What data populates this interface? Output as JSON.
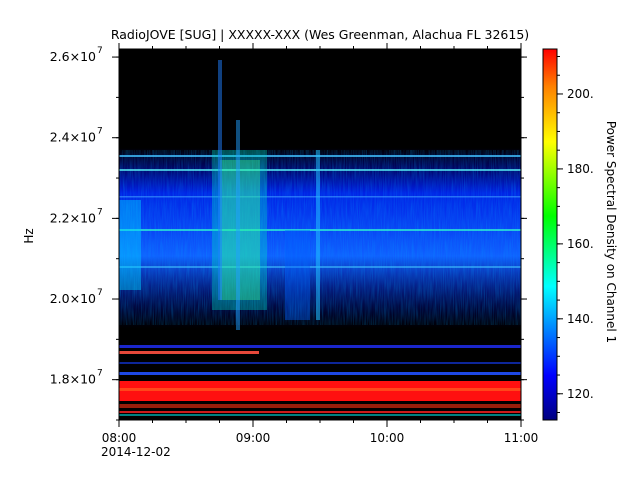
{
  "chart_data": {
    "type": "heatmap",
    "title": "RadioJOVE [SUG] | XXXXX-XXX (Wes Greenman, Alachua FL 32615)",
    "ylabel": "Hz",
    "colorbar_label": "Power Spectral Density on Channel 1",
    "x_ticks": [
      "08:00",
      "09:00",
      "10:00",
      "11:00"
    ],
    "x_date_label": "2014-12-02",
    "xlim": [
      "08:00",
      "11:00"
    ],
    "y_ticks": [
      {
        "value": 18000000,
        "mantissa": "1.8",
        "base": "×10",
        "exp": "7"
      },
      {
        "value": 20000000,
        "mantissa": "2.0",
        "base": "×10",
        "exp": "7"
      },
      {
        "value": 22000000,
        "mantissa": "2.2",
        "base": "×10",
        "exp": "7"
      },
      {
        "value": 24000000,
        "mantissa": "2.4",
        "base": "×10",
        "exp": "7"
      },
      {
        "value": 26000000,
        "mantissa": "2.6",
        "base": "×10",
        "exp": "7"
      }
    ],
    "ylim": [
      17000000,
      26200000
    ],
    "colorbar_ticks": [
      "120.",
      "140.",
      "160.",
      "180.",
      "200."
    ],
    "colorbar_tick_values": [
      120,
      140,
      160,
      180,
      200
    ],
    "zlim": [
      113,
      212
    ],
    "colormap": [
      "#00007f",
      "#0000ff",
      "#00ffff",
      "#00ff00",
      "#ffff00",
      "#ff0000"
    ],
    "background_color": "#000000",
    "grid": false
  }
}
